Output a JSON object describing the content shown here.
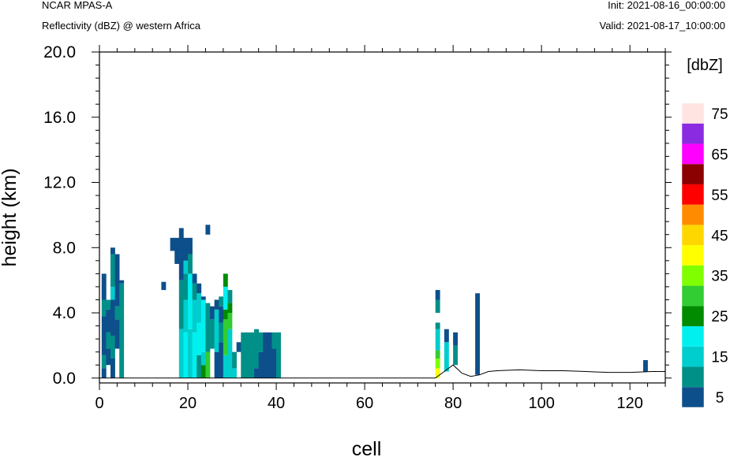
{
  "header": {
    "left_line1": "NCAR MPAS-A",
    "left_line2": "Reflectivity (dBZ) @ western Africa",
    "right_line1": "Init: 2021-08-16_00:00:00",
    "right_line2": "Valid: 2021-08-17_10:00:00"
  },
  "chart_data": {
    "type": "heatmap",
    "xlabel": "cell",
    "ylabel": "height (km)",
    "xlim": [
      0,
      128
    ],
    "ylim": [
      -0.3,
      20.0
    ],
    "x_ticks": [
      0,
      20,
      40,
      60,
      80,
      100,
      120
    ],
    "x_tick_labels": [
      "0",
      "20",
      "40",
      "60",
      "80",
      "100",
      "120"
    ],
    "y_ticks": [
      0.0,
      4.0,
      8.0,
      12.0,
      16.0,
      20.0
    ],
    "y_tick_labels": [
      "0.0",
      "4.0",
      "8.0",
      "12.0",
      "16.0",
      "20.0"
    ],
    "colorbar": {
      "title": "[dbZ]",
      "levels": [
        5,
        10,
        15,
        20,
        25,
        30,
        35,
        40,
        45,
        50,
        55,
        60,
        65,
        70,
        75
      ],
      "labels": [
        "5",
        "15",
        "25",
        "35",
        "45",
        "55",
        "65",
        "75"
      ],
      "colors": [
        "#0d4f8b",
        "#009088",
        "#00cdcd",
        "#00f0f0",
        "#008b00",
        "#32cd32",
        "#7fff00",
        "#ffff00",
        "#ffd700",
        "#ff8c00",
        "#ff0000",
        "#8b0000",
        "#ff00ff",
        "#8a2be2",
        "#ffe4e1"
      ]
    },
    "terrain": [
      [
        0,
        0
      ],
      [
        60,
        0
      ],
      [
        76,
        0
      ],
      [
        78,
        0.4
      ],
      [
        80,
        0.8
      ],
      [
        82,
        0.3
      ],
      [
        84,
        0.1
      ],
      [
        86,
        0.2
      ],
      [
        88,
        0.4
      ],
      [
        90,
        0.45
      ],
      [
        95,
        0.5
      ],
      [
        100,
        0.45
      ],
      [
        105,
        0.45
      ],
      [
        110,
        0.4
      ],
      [
        115,
        0.35
      ],
      [
        120,
        0.35
      ],
      [
        125,
        0.4
      ],
      [
        128,
        0.4
      ]
    ],
    "columns": [
      {
        "x": 1,
        "segs": [
          [
            0.0,
            0.6,
            5
          ],
          [
            0.6,
            1.4,
            10
          ],
          [
            1.4,
            3.8,
            5
          ],
          [
            3.8,
            4.8,
            10
          ],
          [
            4.8,
            6.4,
            5
          ]
        ]
      },
      {
        "x": 2,
        "segs": [
          [
            0.8,
            1.8,
            5
          ],
          [
            1.8,
            2.8,
            10
          ],
          [
            2.8,
            4.2,
            5
          ],
          [
            4.2,
            4.8,
            10
          ]
        ]
      },
      {
        "x": 3,
        "segs": [
          [
            0.0,
            1.2,
            5
          ],
          [
            1.2,
            2.6,
            10
          ],
          [
            2.6,
            4.8,
            5
          ],
          [
            4.8,
            5.6,
            15
          ],
          [
            5.6,
            7.6,
            10
          ],
          [
            7.6,
            8.0,
            5
          ]
        ]
      },
      {
        "x": 4,
        "segs": [
          [
            1.8,
            3.6,
            5
          ],
          [
            3.6,
            4.4,
            10
          ],
          [
            4.4,
            7.6,
            5
          ]
        ]
      },
      {
        "x": 5,
        "segs": [
          [
            0.0,
            5.8,
            10
          ],
          [
            5.8,
            6.0,
            5
          ]
        ]
      },
      {
        "x": 14.5,
        "segs": [
          [
            5.4,
            5.9,
            5
          ]
        ]
      },
      {
        "x": 16.5,
        "segs": [
          [
            7.8,
            8.6,
            5
          ]
        ]
      },
      {
        "x": 17.5,
        "segs": [
          [
            7.0,
            8.6,
            5
          ]
        ]
      },
      {
        "x": 18.5,
        "segs": [
          [
            0.0,
            3.0,
            15
          ],
          [
            3.0,
            6.0,
            10
          ],
          [
            6.0,
            7.6,
            5
          ],
          [
            7.6,
            9.2,
            5
          ]
        ]
      },
      {
        "x": 19.5,
        "segs": [
          [
            0.0,
            2.8,
            20
          ],
          [
            2.8,
            4.8,
            15
          ],
          [
            4.8,
            6.4,
            10
          ],
          [
            6.4,
            7.2,
            15
          ],
          [
            7.2,
            8.6,
            5
          ]
        ]
      },
      {
        "x": 20.5,
        "segs": [
          [
            0.0,
            3.0,
            15
          ],
          [
            3.0,
            6.4,
            20
          ],
          [
            6.4,
            7.6,
            10
          ],
          [
            7.6,
            8.6,
            5
          ]
        ]
      },
      {
        "x": 21.5,
        "segs": [
          [
            0.0,
            2.8,
            20
          ],
          [
            2.8,
            4.8,
            15
          ],
          [
            4.8,
            5.8,
            10
          ],
          [
            5.8,
            6.4,
            5
          ]
        ]
      },
      {
        "x": 22.5,
        "segs": [
          [
            0.0,
            1.4,
            10
          ],
          [
            1.4,
            3.4,
            20
          ],
          [
            3.4,
            5.2,
            15
          ],
          [
            5.2,
            5.8,
            5
          ]
        ]
      },
      {
        "x": 23.5,
        "segs": [
          [
            0.0,
            0.8,
            25
          ],
          [
            0.8,
            1.6,
            15
          ],
          [
            1.6,
            4.8,
            20
          ],
          [
            4.8,
            5.0,
            5
          ]
        ]
      },
      {
        "x": 24.5,
        "segs": [
          [
            0.0,
            1.6,
            30
          ],
          [
            1.6,
            4.6,
            10
          ],
          [
            8.8,
            9.4,
            5
          ]
        ]
      },
      {
        "x": 25.5,
        "segs": [
          [
            1.8,
            3.6,
            10
          ],
          [
            3.6,
            4.4,
            5
          ]
        ]
      },
      {
        "x": 26.5,
        "segs": [
          [
            0.0,
            1.6,
            5
          ],
          [
            1.6,
            4.2,
            15
          ],
          [
            4.2,
            4.8,
            5
          ]
        ]
      },
      {
        "x": 27.5,
        "segs": [
          [
            0.0,
            2.2,
            5
          ],
          [
            2.2,
            3.4,
            10
          ],
          [
            3.4,
            4.4,
            5
          ],
          [
            4.4,
            5.0,
            10
          ]
        ]
      },
      {
        "x": 28.5,
        "segs": [
          [
            0.0,
            1.4,
            15
          ],
          [
            1.4,
            3.6,
            30
          ],
          [
            3.6,
            4.2,
            25
          ],
          [
            4.2,
            5.6,
            20
          ],
          [
            5.6,
            6.4,
            25
          ]
        ]
      },
      {
        "x": 29.5,
        "segs": [
          [
            0.0,
            3.0,
            15
          ],
          [
            3.0,
            4.0,
            30
          ],
          [
            4.0,
            4.6,
            25
          ],
          [
            4.6,
            5.4,
            10
          ]
        ]
      },
      {
        "x": 30.5,
        "segs": [
          [
            0.0,
            0.6,
            15
          ],
          [
            0.6,
            1.6,
            10
          ]
        ]
      },
      {
        "x": 31.5,
        "segs": [
          [
            1.6,
            2.2,
            5
          ]
        ]
      },
      {
        "x": 32.5,
        "segs": [
          [
            0.0,
            2.8,
            10
          ]
        ]
      },
      {
        "x": 33.5,
        "segs": [
          [
            0.0,
            2.8,
            10
          ]
        ]
      },
      {
        "x": 34.5,
        "segs": [
          [
            0.0,
            2.8,
            10
          ]
        ]
      },
      {
        "x": 35.5,
        "segs": [
          [
            0.0,
            0.6,
            5
          ],
          [
            0.6,
            3.0,
            10
          ]
        ]
      },
      {
        "x": 36.5,
        "segs": [
          [
            0.0,
            1.6,
            5
          ],
          [
            1.6,
            2.8,
            10
          ]
        ]
      },
      {
        "x": 37.5,
        "segs": [
          [
            0.0,
            2.8,
            5
          ]
        ]
      },
      {
        "x": 38.5,
        "segs": [
          [
            0.0,
            2.8,
            5
          ]
        ]
      },
      {
        "x": 39.5,
        "segs": [
          [
            0.0,
            1.8,
            5
          ],
          [
            1.8,
            2.8,
            10
          ]
        ]
      },
      {
        "x": 40.5,
        "segs": [
          [
            0.0,
            2.8,
            10
          ]
        ]
      },
      {
        "x": 76.5,
        "segs": [
          [
            0.0,
            0.6,
            40
          ],
          [
            0.6,
            1.2,
            35
          ],
          [
            1.2,
            1.7,
            30
          ],
          [
            1.7,
            3.0,
            15
          ],
          [
            3.0,
            3.4,
            10
          ],
          [
            4.0,
            4.8,
            10
          ],
          [
            4.8,
            5.4,
            5
          ]
        ]
      },
      {
        "x": 78.5,
        "segs": [
          [
            0.4,
            2.2,
            15
          ],
          [
            2.2,
            3.0,
            5
          ]
        ]
      },
      {
        "x": 80.5,
        "segs": [
          [
            0.8,
            2.0,
            10
          ],
          [
            2.0,
            2.8,
            5
          ]
        ]
      },
      {
        "x": 85.5,
        "segs": [
          [
            0.2,
            5.2,
            5
          ]
        ]
      },
      {
        "x": 123.5,
        "segs": [
          [
            0.4,
            1.1,
            5
          ]
        ]
      }
    ]
  }
}
